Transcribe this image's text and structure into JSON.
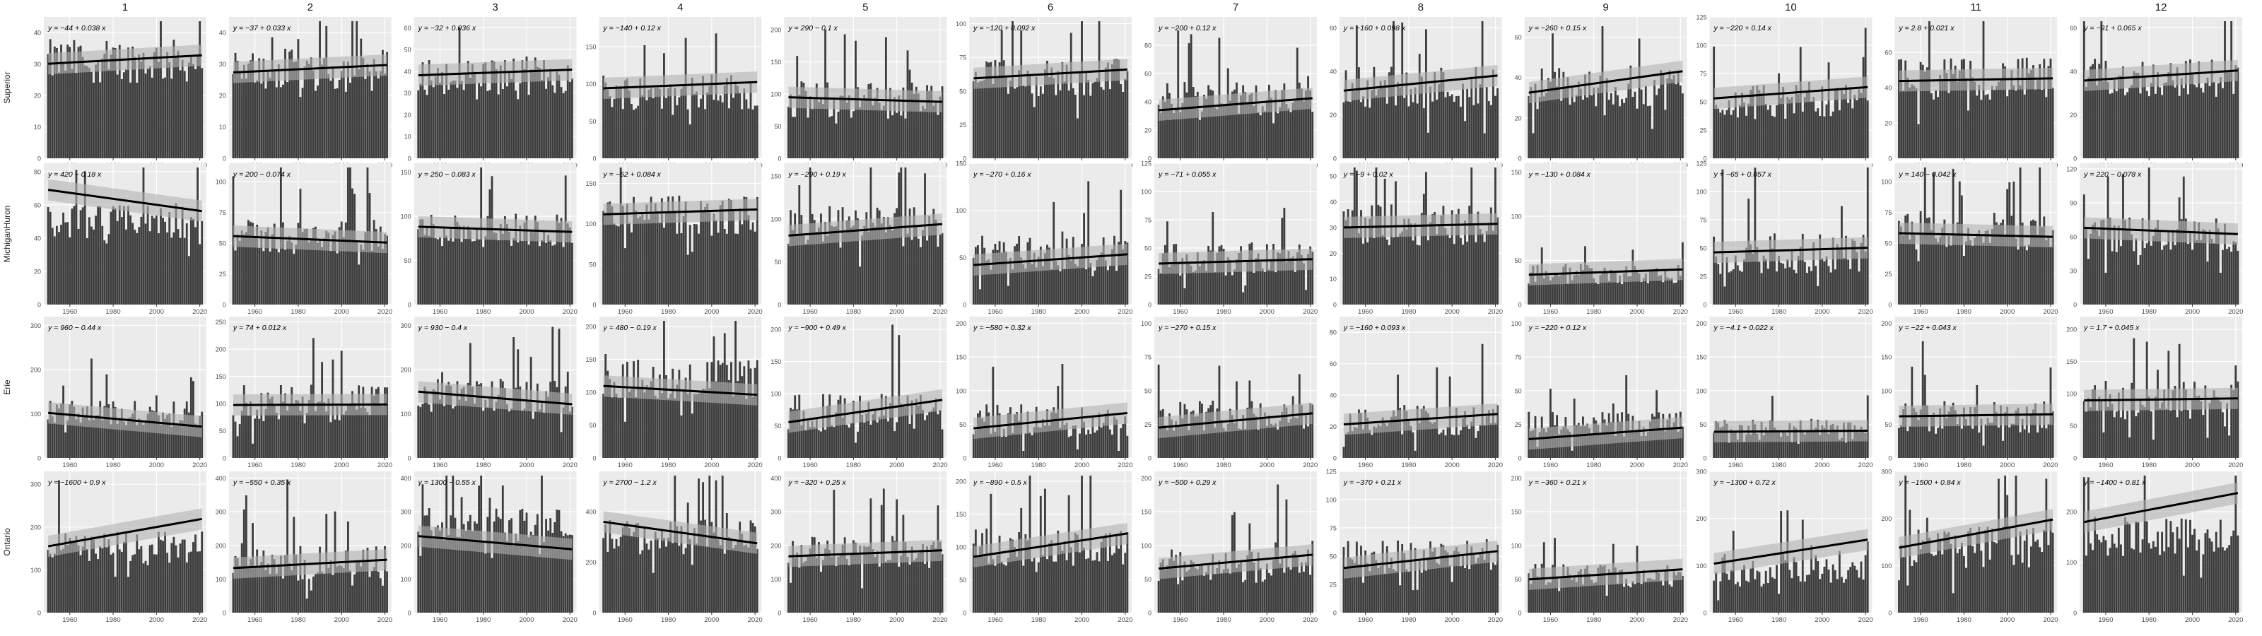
{
  "colors": {
    "panel_bg": "#ebebeb",
    "grid_major": "#ffffff",
    "bar_fill": "#3d3d3d",
    "trend_line": "#000000",
    "ci_band": "#b3b3b3",
    "strip_text": "#1a1a1a",
    "tick_text": "#4d4d4d"
  },
  "chart_data": {
    "type": "bar",
    "facet_columns": [
      "1",
      "2",
      "3",
      "4",
      "5",
      "6",
      "7",
      "8",
      "9",
      "10",
      "11",
      "12"
    ],
    "facet_rows": [
      "Superior",
      "MichiganHuron",
      "Erie",
      "Ontario"
    ],
    "x_range": [
      1948,
      2023
    ],
    "x_ticks": [
      1960,
      1980,
      2000,
      2020
    ],
    "x_tick_labels": [
      "1960",
      "1980",
      "2000",
      "2020"
    ],
    "grid": true,
    "bar_years": [
      1950,
      2021
    ],
    "panels": [
      [
        {
          "eq": "y = −44 + 0.038 x",
          "ylim": [
            0,
            45
          ],
          "yticks": [
            0,
            10,
            20,
            30,
            40
          ],
          "intercept": -44,
          "slope": 0.038,
          "base": 31,
          "spread": 7
        },
        {
          "eq": "y = −37 + 0.033 x",
          "ylim": [
            0,
            45
          ],
          "yticks": [
            0,
            10,
            20,
            30,
            40
          ],
          "intercept": -37,
          "slope": 0.033,
          "base": 28,
          "spread": 7
        },
        {
          "eq": "y = −32 + 0.036 x",
          "ylim": [
            0,
            65
          ],
          "yticks": [
            0,
            10,
            20,
            30,
            40,
            50,
            60
          ],
          "intercept": -32,
          "slope": 0.036,
          "base": 38,
          "spread": 9
        },
        {
          "eq": "y = −140 + 0.12 x",
          "ylim": [
            0,
            190
          ],
          "yticks": [
            0,
            50,
            100,
            150
          ],
          "intercept": -140,
          "slope": 0.12,
          "base": 90,
          "spread": 25
        },
        {
          "eq": "y = 290 − 0.1 x",
          "ylim": [
            0,
            220
          ],
          "yticks": [
            0,
            50,
            100,
            150,
            200
          ],
          "intercept": 290,
          "slope": -0.1,
          "base": 90,
          "spread": 30
        },
        {
          "eq": "y = −120 + 0.092 x",
          "ylim": [
            0,
            105
          ],
          "yticks": [
            0,
            25,
            50,
            75,
            100
          ],
          "intercept": -120,
          "slope": 0.092,
          "base": 60,
          "spread": 14
        },
        {
          "eq": "y = −200 + 0.12 x",
          "ylim": [
            0,
            100
          ],
          "yticks": [
            0,
            20,
            40,
            60,
            80
          ],
          "intercept": -200,
          "slope": 0.12,
          "base": 42,
          "spread": 12
        },
        {
          "eq": "y = −160 + 0.098 x",
          "ylim": [
            0,
            65
          ],
          "yticks": [
            0,
            20,
            40,
            60
          ],
          "intercept": -160,
          "slope": 0.098,
          "base": 33,
          "spread": 10
        },
        {
          "eq": "y = −260 + 0.15 x",
          "ylim": [
            0,
            70
          ],
          "yticks": [
            0,
            20,
            40,
            60
          ],
          "intercept": -260,
          "slope": 0.15,
          "base": 35,
          "spread": 11
        },
        {
          "eq": "y = −220 + 0.14 x",
          "ylim": [
            0,
            125
          ],
          "yticks": [
            0,
            25,
            50,
            75,
            100,
            125
          ],
          "intercept": -220,
          "slope": 0.14,
          "base": 50,
          "spread": 15
        },
        {
          "eq": "y = 2.8 + 0.021 x",
          "ylim": [
            0,
            80
          ],
          "yticks": [
            0,
            20,
            40,
            60
          ],
          "intercept": 2.8,
          "slope": 0.021,
          "base": 45,
          "spread": 12
        },
        {
          "eq": "y = −91 + 0.065 x",
          "ylim": [
            0,
            65
          ],
          "yticks": [
            0,
            20,
            40,
            60
          ],
          "intercept": -91,
          "slope": 0.065,
          "base": 37,
          "spread": 9
        }
      ],
      [
        {
          "eq": "y = 420 − 0.18 x",
          "ylim": [
            0,
            85
          ],
          "yticks": [
            0,
            20,
            40,
            60,
            80
          ],
          "intercept": 420,
          "slope": -0.18,
          "base": 50,
          "spread": 10
        },
        {
          "eq": "y = 200 − 0.074 x",
          "ylim": [
            0,
            115
          ],
          "yticks": [
            0,
            25,
            50,
            75,
            100
          ],
          "intercept": 200,
          "slope": -0.074,
          "base": 55,
          "spread": 14
        },
        {
          "eq": "y = 250 − 0.083 x",
          "ylim": [
            0,
            160
          ],
          "yticks": [
            0,
            50,
            100,
            150
          ],
          "intercept": 250,
          "slope": -0.083,
          "base": 85,
          "spread": 20
        },
        {
          "eq": "y = −52 + 0.084 x",
          "ylim": [
            0,
            175
          ],
          "yticks": [
            0,
            50,
            100,
            150
          ],
          "intercept": -52,
          "slope": 0.084,
          "base": 110,
          "spread": 25
        },
        {
          "eq": "y = −290 + 0.19 x",
          "ylim": [
            0,
            165
          ],
          "yticks": [
            0,
            50,
            100,
            150
          ],
          "intercept": -290,
          "slope": 0.19,
          "base": 90,
          "spread": 25
        },
        {
          "eq": "y = −270 + 0.16 x",
          "ylim": [
            0,
            150
          ],
          "yticks": [
            0,
            50,
            100,
            150
          ],
          "intercept": -270,
          "slope": 0.16,
          "base": 55,
          "spread": 20
        },
        {
          "eq": "y = −71 + 0.055 x",
          "ylim": [
            0,
            125
          ],
          "yticks": [
            0,
            25,
            50,
            75,
            100,
            125
          ],
          "intercept": -71,
          "slope": 0.055,
          "base": 40,
          "spread": 15
        },
        {
          "eq": "y = −9 + 0.02 x",
          "ylim": [
            0,
            55
          ],
          "yticks": [
            0,
            10,
            20,
            30,
            40,
            50
          ],
          "intercept": -9,
          "slope": 0.02,
          "base": 31,
          "spread": 8
        },
        {
          "eq": "y = −130 + 0.084 x",
          "ylim": [
            0,
            160
          ],
          "yticks": [
            0,
            50,
            100,
            150
          ],
          "intercept": -130,
          "slope": 0.084,
          "base": 35,
          "spread": 12
        },
        {
          "eq": "y = −65 + 0.057 x",
          "ylim": [
            0,
            125
          ],
          "yticks": [
            0,
            25,
            50,
            75,
            100,
            125
          ],
          "intercept": -65,
          "slope": 0.057,
          "base": 45,
          "spread": 18
        },
        {
          "eq": "y = 140 − 0.042 x",
          "ylim": [
            0,
            115
          ],
          "yticks": [
            0,
            25,
            50,
            75,
            100
          ],
          "intercept": 140,
          "slope": -0.042,
          "base": 60,
          "spread": 16
        },
        {
          "eq": "y = 220 − 0.078 x",
          "ylim": [
            0,
            125
          ],
          "yticks": [
            0,
            30,
            60,
            90,
            120
          ],
          "intercept": 220,
          "slope": -0.078,
          "base": 62,
          "spread": 16
        }
      ],
      [
        {
          "eq": "y = 960 − 0.44 x",
          "ylim": [
            0,
            320
          ],
          "yticks": [
            0,
            100,
            200,
            300
          ],
          "intercept": 960,
          "slope": -0.44,
          "base": 100,
          "spread": 30
        },
        {
          "eq": "y = 74 + 0.012 x",
          "ylim": [
            0,
            260
          ],
          "yticks": [
            0,
            50,
            100,
            150,
            200,
            250
          ],
          "intercept": 74,
          "slope": 0.012,
          "base": 100,
          "spread": 35
        },
        {
          "eq": "y = 930 − 0.4 x",
          "ylim": [
            0,
            320
          ],
          "yticks": [
            0,
            100,
            200,
            300
          ],
          "intercept": 930,
          "slope": -0.4,
          "base": 140,
          "spread": 40
        },
        {
          "eq": "y = 480 − 0.19 x",
          "ylim": [
            0,
            215
          ],
          "yticks": [
            0,
            50,
            100,
            150,
            200
          ],
          "intercept": 480,
          "slope": -0.19,
          "base": 120,
          "spread": 30
        },
        {
          "eq": "y = −900 + 0.49 x",
          "ylim": [
            0,
            220
          ],
          "yticks": [
            0,
            50,
            100,
            150,
            200
          ],
          "intercept": -900,
          "slope": 0.49,
          "base": 70,
          "spread": 30
        },
        {
          "eq": "y = −580 + 0.32 x",
          "ylim": [
            0,
            210
          ],
          "yticks": [
            0,
            50,
            100,
            150,
            200
          ],
          "intercept": -580,
          "slope": 0.32,
          "base": 55,
          "spread": 25
        },
        {
          "eq": "y = −270 + 0.15 x",
          "ylim": [
            0,
            105
          ],
          "yticks": [
            0,
            25,
            50,
            75,
            100
          ],
          "intercept": -270,
          "slope": 0.15,
          "base": 32,
          "spread": 12
        },
        {
          "eq": "y = −160 + 0.093 x",
          "ylim": [
            0,
            90
          ],
          "yticks": [
            0,
            20,
            40,
            60,
            80
          ],
          "intercept": -160,
          "slope": 0.093,
          "base": 24,
          "spread": 10
        },
        {
          "eq": "y = −220 + 0.12 x",
          "ylim": [
            0,
            105
          ],
          "yticks": [
            0,
            25,
            50,
            75,
            100
          ],
          "intercept": -220,
          "slope": 0.12,
          "base": 25,
          "spread": 10
        },
        {
          "eq": "y = −4.1 + 0.022 x",
          "ylim": [
            0,
            210
          ],
          "yticks": [
            0,
            50,
            100,
            150,
            200
          ],
          "intercept": -4.1,
          "slope": 0.022,
          "base": 40,
          "spread": 18
        },
        {
          "eq": "y = −22 + 0.043 x",
          "ylim": [
            0,
            210
          ],
          "yticks": [
            0,
            50,
            100,
            150,
            200
          ],
          "intercept": -22,
          "slope": 0.043,
          "base": 60,
          "spread": 25
        },
        {
          "eq": "y = 1.7 + 0.045 x",
          "ylim": [
            0,
            220
          ],
          "yticks": [
            0,
            50,
            100,
            150,
            200
          ],
          "intercept": 1.7,
          "slope": 0.045,
          "base": 90,
          "spread": 30
        }
      ],
      [
        {
          "eq": "y = −1600 + 0.9 x",
          "ylim": [
            0,
            330
          ],
          "yticks": [
            0,
            100,
            200,
            300
          ],
          "intercept": -1600,
          "slope": 0.9,
          "base": 150,
          "spread": 40
        },
        {
          "eq": "y = −550 + 0.35 x",
          "ylim": [
            0,
            420
          ],
          "yticks": [
            0,
            100,
            200,
            300,
            400
          ],
          "intercept": -550,
          "slope": 0.35,
          "base": 150,
          "spread": 50
        },
        {
          "eq": "y = 1300 − 0.55 x",
          "ylim": [
            0,
            420
          ],
          "yticks": [
            0,
            100,
            200,
            300,
            400
          ],
          "intercept": 1300,
          "slope": -0.55,
          "base": 260,
          "spread": 50
        },
        {
          "eq": "y = 2700 − 1.2 x",
          "ylim": [
            0,
            560
          ],
          "yticks": [
            0,
            200,
            400
          ],
          "intercept": 2700,
          "slope": -1.2,
          "base": 300,
          "spread": 70
        },
        {
          "eq": "y = −320 + 0.25 x",
          "ylim": [
            0,
            420
          ],
          "yticks": [
            0,
            100,
            200,
            300,
            400
          ],
          "intercept": -320,
          "slope": 0.25,
          "base": 180,
          "spread": 50
        },
        {
          "eq": "y = −890 + 0.5 x",
          "ylim": [
            0,
            215
          ],
          "yticks": [
            0,
            50,
            100,
            150,
            200
          ],
          "intercept": -890,
          "slope": 0.5,
          "base": 100,
          "spread": 30
        },
        {
          "eq": "y = −500 + 0.29 x",
          "ylim": [
            0,
            210
          ],
          "yticks": [
            0,
            50,
            100,
            150,
            200
          ],
          "intercept": -500,
          "slope": 0.29,
          "base": 70,
          "spread": 25
        },
        {
          "eq": "y = −370 + 0.21 x",
          "ylim": [
            0,
            125
          ],
          "yticks": [
            0,
            25,
            50,
            75,
            100,
            125
          ],
          "intercept": -370,
          "slope": 0.21,
          "base": 50,
          "spread": 15
        },
        {
          "eq": "y = −360 + 0.21 x",
          "ylim": [
            0,
            210
          ],
          "yticks": [
            0,
            50,
            100,
            150,
            200
          ],
          "intercept": -360,
          "slope": 0.21,
          "base": 55,
          "spread": 18
        },
        {
          "eq": "y = −1300 + 0.72 x",
          "ylim": [
            0,
            300
          ],
          "yticks": [
            0,
            100,
            200,
            300
          ],
          "intercept": -1300,
          "slope": 0.72,
          "base": 90,
          "spread": 35
        },
        {
          "eq": "y = −1500 + 0.84 x",
          "ylim": [
            0,
            300
          ],
          "yticks": [
            0,
            100,
            200,
            300
          ],
          "intercept": -1500,
          "slope": 0.84,
          "base": 140,
          "spread": 45
        },
        {
          "eq": "y = −1400 + 0.81 x",
          "ylim": [
            0,
            280
          ],
          "yticks": [
            0,
            100,
            200
          ],
          "intercept": -1400,
          "slope": 0.81,
          "base": 150,
          "spread": 40
        }
      ]
    ]
  }
}
